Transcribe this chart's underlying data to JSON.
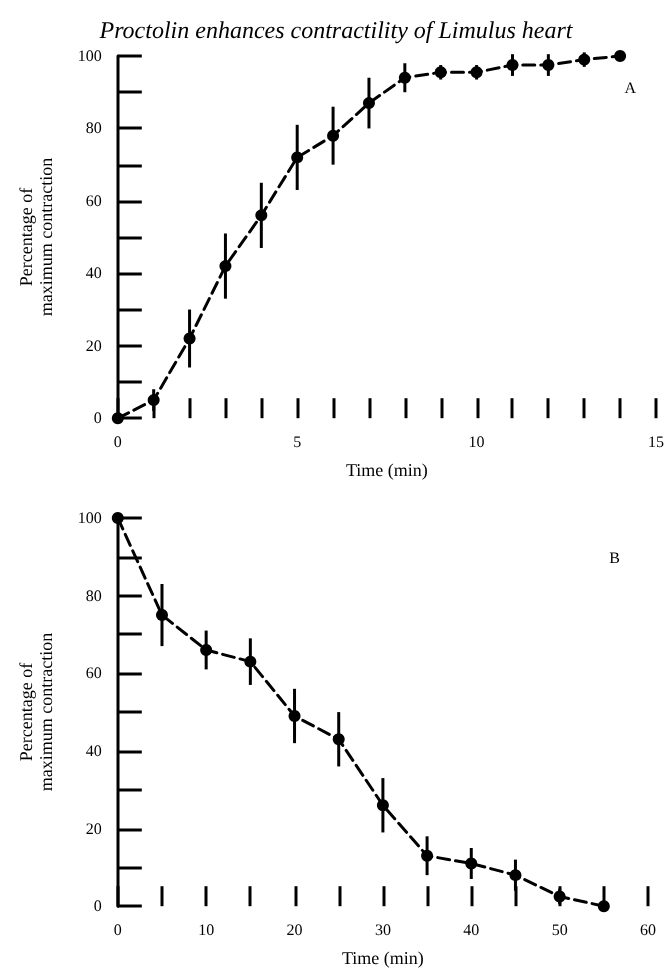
{
  "chart_data": [
    {
      "type": "line",
      "title": "Proctolin enhances contractility of Limulus heart",
      "xlabel": "Time (min)",
      "ylabel": "Percentage of\nmaximum contraction",
      "annotations": [
        "A"
      ],
      "x": [
        0,
        1,
        2,
        3,
        4,
        5,
        6,
        7,
        8,
        9,
        10,
        11,
        12,
        13,
        14
      ],
      "series": [
        {
          "color": "#000000",
          "values": [
            0,
            5,
            22,
            42,
            56,
            72,
            78,
            87,
            94,
            95.5,
            95.5,
            97.5,
            97.5,
            99,
            100
          ],
          "errors": [
            null,
            3,
            8,
            9,
            9,
            9,
            8,
            7,
            4,
            2,
            2,
            3,
            3,
            2,
            null
          ]
        }
      ],
      "xlim": [
        0,
        15
      ],
      "xticks": [
        0,
        {
          "value": 1,
          "label": null
        },
        {
          "value": 2,
          "label": null
        },
        {
          "value": 3,
          "label": null
        },
        {
          "value": 4,
          "label": null
        },
        5,
        {
          "value": 6,
          "label": null
        },
        {
          "value": 7,
          "label": null
        },
        {
          "value": 8,
          "label": null
        },
        {
          "value": 9,
          "label": null
        },
        10,
        {
          "value": 11,
          "label": null
        },
        {
          "value": 12,
          "label": null
        },
        {
          "value": 13,
          "label": null
        },
        {
          "value": 14,
          "label": null
        },
        15
      ],
      "ylim": [
        0,
        100
      ],
      "yticks": [
        0,
        {
          "value": 10,
          "label": null
        },
        20,
        {
          "value": 30,
          "label": null
        },
        40,
        {
          "value": 50,
          "label": null
        },
        60,
        {
          "value": 70,
          "label": null
        },
        80,
        {
          "value": 90,
          "label": null
        },
        100
      ],
      "marker": "circle",
      "line_style": "dashed"
    },
    {
      "type": "line",
      "xlabel": "Time (min)",
      "ylabel": "Percentage of\nmaximum contraction",
      "annotations": [
        "B"
      ],
      "x": [
        0,
        5,
        10,
        15,
        20,
        25,
        30,
        35,
        40,
        45,
        50,
        55
      ],
      "series": [
        {
          "color": "#000000",
          "values": [
            100,
            75,
            66,
            63,
            49,
            43,
            26,
            13,
            11,
            8,
            2.5,
            0
          ],
          "errors": [
            null,
            8,
            5,
            6,
            7,
            7,
            7,
            5,
            4,
            4,
            2,
            null
          ]
        }
      ],
      "xlim": [
        0,
        60
      ],
      "xticks": [
        0,
        {
          "value": 5,
          "label": null
        },
        10,
        {
          "value": 15,
          "label": null
        },
        20,
        {
          "value": 25,
          "label": null
        },
        30,
        {
          "value": 35,
          "label": null
        },
        40,
        {
          "value": 45,
          "label": null
        },
        50,
        {
          "value": 55,
          "label": null
        },
        60
      ],
      "ylim": [
        0,
        100
      ],
      "yticks": [
        0,
        {
          "value": 10,
          "label": null
        },
        20,
        {
          "value": 30,
          "label": null
        },
        40,
        {
          "value": 50,
          "label": null
        },
        60,
        {
          "value": 70,
          "label": null
        },
        80,
        {
          "value": 90,
          "label": null
        },
        100
      ],
      "marker": "circle",
      "line_style": "dashed"
    }
  ]
}
